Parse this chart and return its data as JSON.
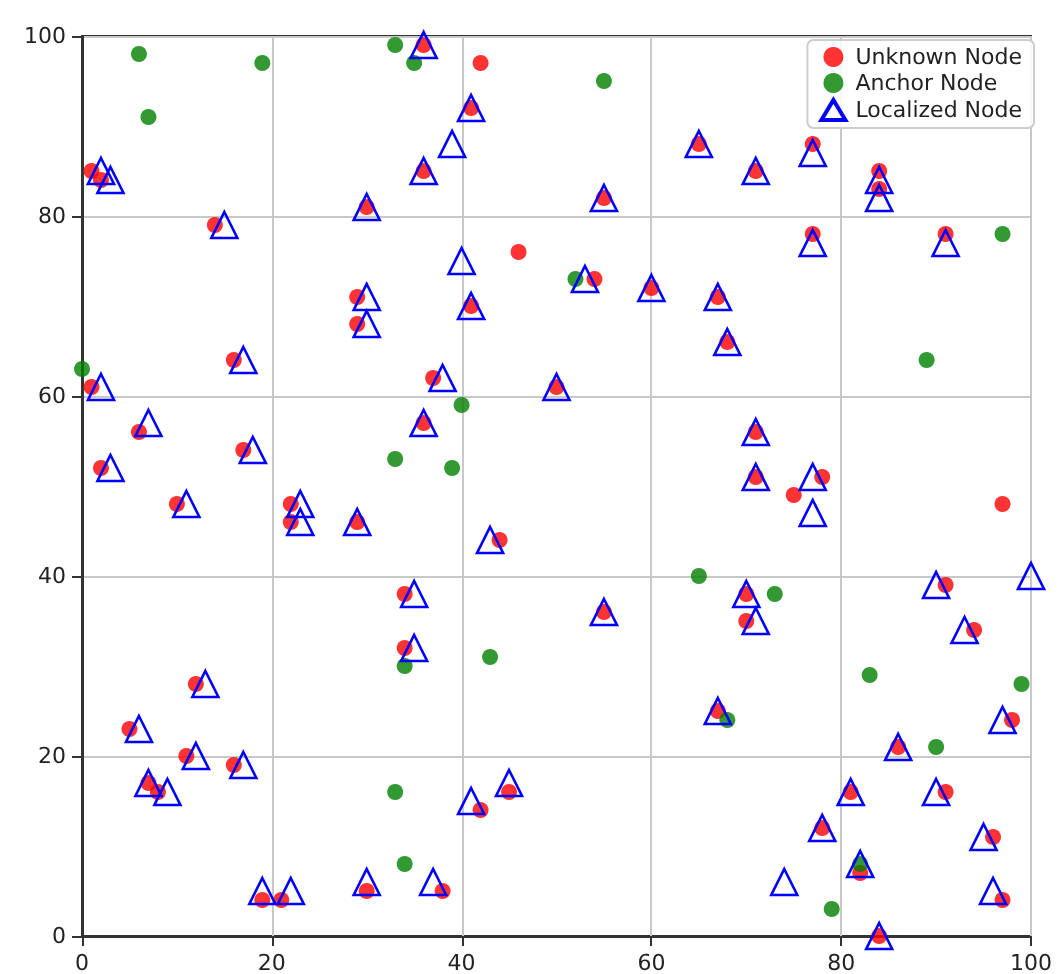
{
  "chart_data": {
    "type": "scatter",
    "xlim": [
      0,
      100
    ],
    "ylim": [
      0,
      100
    ],
    "xticks": [
      0,
      20,
      40,
      60,
      80,
      100
    ],
    "yticks": [
      0,
      20,
      40,
      60,
      80,
      100
    ],
    "grid": true,
    "legend": "top right",
    "series": [
      {
        "name": "Unknown Node",
        "color": "#ff0000",
        "marker": "circle",
        "x": [
          1,
          2,
          14,
          30,
          36,
          36,
          42,
          41,
          46,
          29,
          29,
          41,
          37,
          36,
          16,
          17,
          1,
          2,
          6,
          10,
          22,
          22,
          29,
          44,
          34,
          34,
          12,
          5,
          7,
          8,
          11,
          16,
          19,
          21,
          30,
          38,
          42,
          45,
          50,
          55,
          54,
          60,
          65,
          67,
          68,
          71,
          77,
          77,
          84,
          84,
          91,
          71,
          71,
          75,
          78,
          97,
          55,
          70,
          70,
          67,
          91,
          94,
          98,
          86,
          91,
          96,
          97,
          78,
          81,
          82,
          84
        ],
        "values": [
          85,
          84,
          79,
          81,
          85,
          99,
          97,
          92,
          76,
          71,
          68,
          70,
          62,
          57,
          64,
          54,
          61,
          52,
          56,
          48,
          48,
          46,
          46,
          44,
          38,
          32,
          28,
          23,
          17,
          16,
          20,
          19,
          4,
          4,
          5,
          5,
          14,
          16,
          61,
          82,
          73,
          72,
          88,
          71,
          66,
          85,
          88,
          78,
          85,
          83,
          78,
          56,
          51,
          49,
          51,
          48,
          36,
          38,
          35,
          25,
          39,
          34,
          24,
          21,
          16,
          11,
          4,
          12,
          16,
          7,
          0
        ]
      },
      {
        "name": "Anchor Node",
        "color": "#008000",
        "marker": "circle",
        "x": [
          0,
          6,
          7,
          19,
          33,
          35,
          55,
          52,
          40,
          33,
          39,
          43,
          34,
          33,
          34,
          65,
          68,
          73,
          83,
          89,
          97,
          99,
          90,
          79,
          82
        ],
        "values": [
          63,
          98,
          91,
          97,
          99,
          97,
          95,
          73,
          59,
          53,
          52,
          31,
          30,
          16,
          8,
          40,
          24,
          38,
          29,
          64,
          78,
          28,
          21,
          3,
          8
        ]
      },
      {
        "name": "Localized Node",
        "color": "#0000ff",
        "marker": "triangle",
        "x": [
          2,
          3,
          15,
          30,
          36,
          36,
          41,
          39,
          40,
          30,
          30,
          41,
          38,
          36,
          17,
          18,
          2,
          3,
          7,
          11,
          23,
          23,
          29,
          43,
          35,
          35,
          13,
          6,
          7,
          9,
          12,
          17,
          19,
          22,
          30,
          37,
          41,
          45,
          50,
          55,
          53,
          60,
          65,
          67,
          68,
          71,
          77,
          77,
          84,
          84,
          91,
          71,
          71,
          77,
          77,
          100,
          55,
          70,
          71,
          67,
          90,
          93,
          97,
          86,
          90,
          95,
          96,
          78,
          81,
          82,
          84,
          74
        ],
        "values": [
          85,
          84,
          79,
          81,
          85,
          99,
          92,
          88,
          75,
          71,
          68,
          70,
          62,
          57,
          64,
          54,
          61,
          52,
          57,
          48,
          48,
          46,
          46,
          44,
          38,
          32,
          28,
          23,
          17,
          16,
          20,
          19,
          5,
          5,
          6,
          6,
          15,
          17,
          61,
          82,
          73,
          72,
          88,
          71,
          66,
          85,
          87,
          77,
          84,
          82,
          77,
          56,
          51,
          47,
          51,
          40,
          36,
          38,
          35,
          25,
          39,
          34,
          24,
          21,
          16,
          11,
          5,
          12,
          16,
          8,
          0,
          6
        ]
      }
    ]
  }
}
